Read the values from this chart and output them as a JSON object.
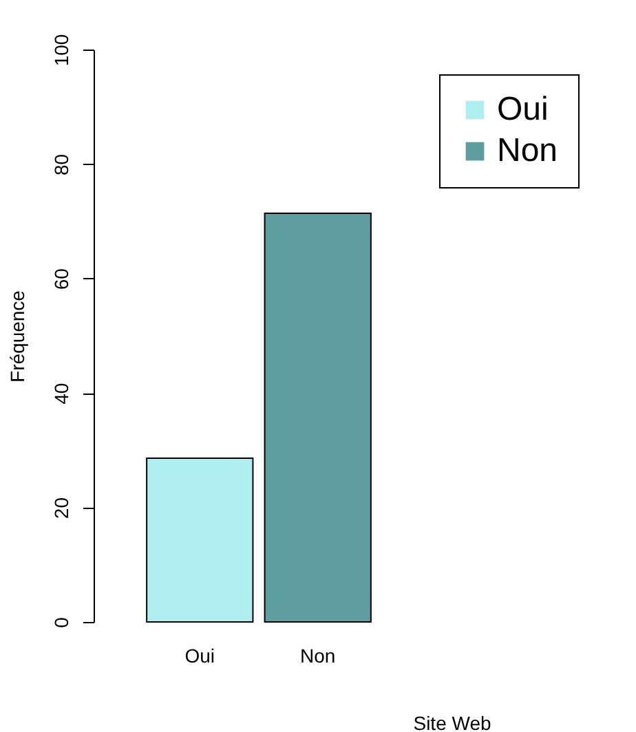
{
  "chart_data": {
    "type": "bar",
    "xlabel": "Site Web",
    "ylabel": "Fréquence",
    "categories": [
      "Oui",
      "Non"
    ],
    "series": [
      {
        "name": "Oui",
        "color": "#afeeee",
        "values": [
          28.6,
          null
        ]
      },
      {
        "name": "Non",
        "color": "#5f9ea0",
        "values": [
          null,
          71.4
        ]
      }
    ],
    "ylim": [
      0,
      100
    ],
    "yticks": [
      0,
      20,
      40,
      60,
      80,
      100
    ],
    "grid": false,
    "legend": "top right"
  }
}
